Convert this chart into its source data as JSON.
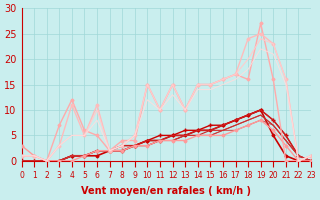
{
  "xlabel": "Vent moyen/en rafales ( km/h )",
  "xlim": [
    0,
    23
  ],
  "ylim": [
    0,
    30
  ],
  "xticks": [
    0,
    1,
    2,
    3,
    4,
    5,
    6,
    7,
    8,
    9,
    10,
    11,
    12,
    13,
    14,
    15,
    16,
    17,
    18,
    19,
    20,
    21,
    22,
    23
  ],
  "yticks": [
    0,
    5,
    10,
    15,
    20,
    25,
    30
  ],
  "bg_color": "#c9eeee",
  "grid_color": "#a0d8d8",
  "series": [
    {
      "x": [
        0,
        1,
        2,
        3,
        4,
        5,
        6,
        7,
        8,
        9,
        10,
        11,
        12,
        13,
        14,
        15,
        16,
        17,
        18,
        19,
        20,
        21,
        22,
        23
      ],
      "y": [
        0,
        0,
        0,
        0,
        1,
        1,
        1,
        2,
        2,
        3,
        4,
        4,
        5,
        5,
        6,
        6,
        7,
        8,
        9,
        10,
        5,
        1,
        0,
        0
      ],
      "color": "#cc0000",
      "lw": 1.2,
      "marker": "D",
      "ms": 1.5,
      "alpha": 1.0
    },
    {
      "x": [
        0,
        1,
        2,
        3,
        4,
        5,
        6,
        7,
        8,
        9,
        10,
        11,
        12,
        13,
        14,
        15,
        16,
        17,
        18,
        19,
        20,
        21,
        22,
        23
      ],
      "y": [
        0,
        0,
        0,
        0,
        1,
        1,
        2,
        2,
        3,
        3,
        4,
        5,
        5,
        6,
        6,
        7,
        7,
        8,
        9,
        10,
        8,
        5,
        1,
        0
      ],
      "color": "#cc0000",
      "lw": 1.0,
      "marker": "+",
      "ms": 2.5,
      "alpha": 1.0
    },
    {
      "x": [
        0,
        1,
        2,
        3,
        4,
        5,
        6,
        7,
        8,
        9,
        10,
        11,
        12,
        13,
        14,
        15,
        16,
        17,
        18,
        19,
        20,
        21,
        22,
        23
      ],
      "y": [
        0,
        0,
        0,
        0,
        1,
        1,
        2,
        2,
        3,
        3,
        4,
        4,
        5,
        5,
        6,
        6,
        7,
        8,
        9,
        10,
        8,
        5,
        1,
        0
      ],
      "color": "#cc2222",
      "lw": 0.8,
      "marker": null,
      "ms": 0,
      "alpha": 1.0
    },
    {
      "x": [
        0,
        1,
        2,
        3,
        4,
        5,
        6,
        7,
        8,
        9,
        10,
        11,
        12,
        13,
        14,
        15,
        16,
        17,
        18,
        19,
        20,
        21,
        22,
        23
      ],
      "y": [
        0,
        0,
        0,
        0,
        1,
        1,
        2,
        2,
        2,
        3,
        3,
        4,
        4,
        5,
        5,
        6,
        6,
        7,
        8,
        9,
        7,
        4,
        1,
        0
      ],
      "color": "#cc2222",
      "lw": 0.8,
      "marker": null,
      "ms": 0,
      "alpha": 1.0
    },
    {
      "x": [
        0,
        1,
        2,
        3,
        4,
        5,
        6,
        7,
        8,
        9,
        10,
        11,
        12,
        13,
        14,
        15,
        16,
        17,
        18,
        19,
        20,
        21,
        22,
        23
      ],
      "y": [
        0,
        0,
        0,
        0,
        1,
        1,
        2,
        2,
        2,
        3,
        3,
        4,
        4,
        5,
        5,
        5,
        6,
        7,
        8,
        9,
        7,
        4,
        1,
        0
      ],
      "color": "#cc3333",
      "lw": 0.7,
      "marker": null,
      "ms": 0,
      "alpha": 0.9
    },
    {
      "x": [
        0,
        1,
        2,
        3,
        4,
        5,
        6,
        7,
        8,
        9,
        10,
        11,
        12,
        13,
        14,
        15,
        16,
        17,
        18,
        19,
        20,
        21,
        22,
        23
      ],
      "y": [
        0,
        0,
        0,
        0,
        1,
        1,
        2,
        2,
        2,
        3,
        3,
        4,
        4,
        5,
        5,
        5,
        6,
        6,
        7,
        8,
        7,
        4,
        1,
        0
      ],
      "color": "#cc3333",
      "lw": 0.7,
      "marker": null,
      "ms": 0,
      "alpha": 0.9
    },
    {
      "x": [
        0,
        1,
        2,
        3,
        4,
        5,
        6,
        7,
        8,
        9,
        10,
        11,
        12,
        13,
        14,
        15,
        16,
        17,
        18,
        19,
        20,
        21,
        22,
        23
      ],
      "y": [
        3,
        1,
        0,
        0,
        0,
        1,
        2,
        2,
        2,
        3,
        3,
        4,
        4,
        4,
        5,
        5,
        5,
        6,
        7,
        8,
        6,
        3,
        0,
        0
      ],
      "color": "#ff9999",
      "lw": 1.0,
      "marker": "D",
      "ms": 1.5,
      "alpha": 1.0
    },
    {
      "x": [
        0,
        1,
        2,
        3,
        4,
        5,
        6,
        7,
        8,
        9,
        10,
        11,
        12,
        13,
        14,
        15,
        16,
        17,
        18,
        19,
        20,
        21,
        22,
        23
      ],
      "y": [
        1,
        1,
        0,
        7,
        12,
        6,
        5,
        2,
        4,
        4,
        15,
        10,
        15,
        10,
        15,
        15,
        16,
        17,
        16,
        27,
        16,
        0,
        0,
        1
      ],
      "color": "#ffaaaa",
      "lw": 1.0,
      "marker": "D",
      "ms": 1.5,
      "alpha": 1.0
    },
    {
      "x": [
        0,
        1,
        2,
        3,
        4,
        5,
        6,
        7,
        8,
        9,
        10,
        11,
        12,
        13,
        14,
        15,
        16,
        17,
        18,
        19,
        20,
        21,
        22,
        23
      ],
      "y": [
        1,
        1,
        0,
        3,
        11,
        5,
        11,
        2,
        3,
        5,
        15,
        10,
        15,
        10,
        15,
        15,
        16,
        17,
        24,
        25,
        23,
        16,
        0,
        1
      ],
      "color": "#ffbbbb",
      "lw": 1.0,
      "marker": "D",
      "ms": 1.5,
      "alpha": 1.0
    },
    {
      "x": [
        0,
        1,
        2,
        3,
        4,
        5,
        6,
        7,
        8,
        9,
        10,
        11,
        12,
        13,
        14,
        15,
        16,
        17,
        18,
        19,
        20,
        21,
        22,
        23
      ],
      "y": [
        1,
        1,
        0,
        3,
        5,
        5,
        10,
        2,
        3,
        5,
        15,
        10,
        15,
        10,
        15,
        15,
        16,
        17,
        20,
        24,
        23,
        16,
        0,
        1
      ],
      "color": "#ffcccc",
      "lw": 0.8,
      "marker": null,
      "ms": 0,
      "alpha": 1.0
    },
    {
      "x": [
        0,
        1,
        2,
        3,
        4,
        5,
        6,
        7,
        8,
        9,
        10,
        11,
        12,
        13,
        14,
        15,
        16,
        17,
        18,
        19,
        20,
        21,
        22,
        23
      ],
      "y": [
        1,
        1,
        0,
        3,
        5,
        5,
        8,
        2,
        3,
        5,
        12,
        10,
        13,
        10,
        14,
        14,
        15,
        16,
        18,
        22,
        21,
        15,
        0,
        1
      ],
      "color": "#ffdddd",
      "lw": 0.7,
      "marker": null,
      "ms": 0,
      "alpha": 0.9
    }
  ],
  "tick_color": "#cc0000",
  "xlabel_color": "#cc0000",
  "xlabel_fontsize": 7,
  "tick_label_fontsize": 5.5,
  "ytick_label_fontsize": 7
}
